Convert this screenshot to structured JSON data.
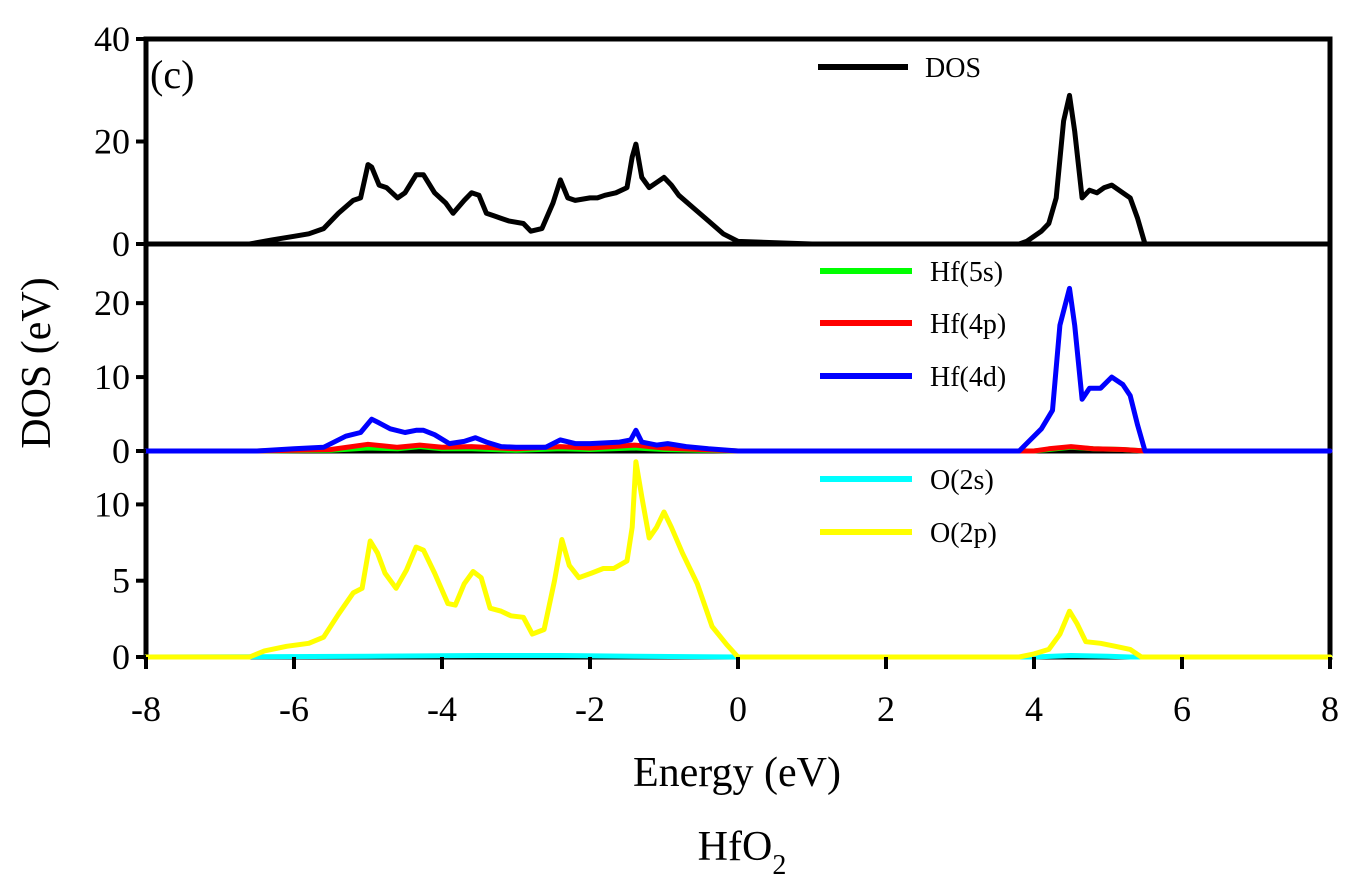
{
  "chart_data": {
    "type": "line",
    "panel_tag": "(c)",
    "xlabel": "Energy (eV)",
    "ylabel": "DOS (eV)",
    "caption": {
      "main": "HfO",
      "subscript": "2"
    },
    "xlim": [
      -8,
      8
    ],
    "xticks": [
      -8,
      -6,
      -4,
      -2,
      0,
      2,
      4,
      6,
      8
    ],
    "xtick_labels": [
      "-8",
      "-6",
      "-4",
      "-2",
      "0",
      "2",
      "4",
      "6",
      "8"
    ],
    "legend_position": "top-right",
    "panels": [
      {
        "ylim": [
          0,
          40
        ],
        "yticks": [
          0,
          20,
          40
        ],
        "ytick_labels": [
          "0",
          "20",
          "40"
        ],
        "series": [
          {
            "name": "DOS",
            "color": "#000000",
            "x": [
              -8,
              -6.6,
              -6.3,
              -6.0,
              -5.8,
              -5.6,
              -5.4,
              -5.2,
              -5.1,
              -5.0,
              -4.95,
              -4.85,
              -4.75,
              -4.6,
              -4.5,
              -4.35,
              -4.25,
              -4.1,
              -3.95,
              -3.85,
              -3.7,
              -3.6,
              -3.5,
              -3.4,
              -3.3,
              -3.2,
              -3.1,
              -2.9,
              -2.8,
              -2.65,
              -2.5,
              -2.4,
              -2.3,
              -2.2,
              -2.0,
              -1.9,
              -1.8,
              -1.65,
              -1.5,
              -1.43,
              -1.38,
              -1.3,
              -1.2,
              -1.1,
              -1.0,
              -0.9,
              -0.8,
              -0.6,
              -0.4,
              -0.2,
              0,
              1,
              2,
              3,
              3.8,
              3.9,
              4.1,
              4.2,
              4.3,
              4.4,
              4.48,
              4.55,
              4.65,
              4.75,
              4.85,
              4.95,
              5.05,
              5.2,
              5.3,
              5.4,
              5.5,
              6,
              8
            ],
            "y": [
              0,
              0,
              0.8,
              1.5,
              2.0,
              3.0,
              6.0,
              8.5,
              9.0,
              15.5,
              15.0,
              11.5,
              11.0,
              9.0,
              10.0,
              13.5,
              13.5,
              10.0,
              8.0,
              6.0,
              8.5,
              10.0,
              9.5,
              6.0,
              5.5,
              5.0,
              4.5,
              4.0,
              2.5,
              3.0,
              8.0,
              12.5,
              9.0,
              8.5,
              9.0,
              9.0,
              9.5,
              10.0,
              11.0,
              17.0,
              19.5,
              13.0,
              11.0,
              12.0,
              13.0,
              11.5,
              9.5,
              7.0,
              4.5,
              2.0,
              0.5,
              0,
              0,
              0,
              0,
              0.5,
              2.5,
              4.0,
              9.0,
              24.0,
              29.0,
              22.0,
              9.0,
              10.5,
              10.0,
              11.0,
              11.5,
              10.0,
              9.0,
              5.0,
              0,
              0,
              0
            ]
          }
        ]
      },
      {
        "ylim": [
          0,
          28
        ],
        "yticks": [
          0,
          10,
          20
        ],
        "ytick_labels": [
          "0",
          "10",
          "20"
        ],
        "series": [
          {
            "name": "Hf(5s)",
            "color": "#00ff00",
            "x": [
              -8,
              -6.5,
              -5.5,
              -5.0,
              -4.6,
              -4.3,
              -4.0,
              -3.6,
              -3.0,
              -2.4,
              -2.0,
              -1.4,
              -1.0,
              -0.5,
              0,
              4,
              4.2,
              4.5,
              4.8,
              5.2,
              5.5,
              8
            ],
            "y": [
              0,
              0,
              0.1,
              0.4,
              0.3,
              0.6,
              0.3,
              0.3,
              0.1,
              0.3,
              0.2,
              0.4,
              0.2,
              0.1,
              0,
              0,
              0.2,
              0.5,
              0.3,
              0.2,
              0,
              0
            ]
          },
          {
            "name": "Hf(4p)",
            "color": "#ff0000",
            "x": [
              -8,
              -6.5,
              -5.5,
              -5.0,
              -4.6,
              -4.3,
              -4.0,
              -3.6,
              -3.0,
              -2.4,
              -2.0,
              -1.4,
              -1.0,
              -0.5,
              0,
              4,
              4.2,
              4.5,
              4.8,
              5.2,
              5.5,
              8
            ],
            "y": [
              0,
              0,
              0.2,
              0.9,
              0.5,
              0.8,
              0.5,
              0.6,
              0.3,
              0.6,
              0.4,
              0.8,
              0.4,
              0.2,
              0,
              0,
              0.3,
              0.6,
              0.3,
              0.2,
              0,
              0
            ]
          },
          {
            "name": "Hf(4d)",
            "color": "#0000ff",
            "x": [
              -8,
              -6.5,
              -6.0,
              -5.6,
              -5.3,
              -5.1,
              -4.95,
              -4.85,
              -4.7,
              -4.5,
              -4.35,
              -4.25,
              -4.1,
              -3.9,
              -3.7,
              -3.55,
              -3.4,
              -3.2,
              -3.0,
              -2.6,
              -2.4,
              -2.2,
              -2.0,
              -1.6,
              -1.45,
              -1.38,
              -1.3,
              -1.1,
              -0.95,
              -0.7,
              -0.4,
              0,
              2,
              3.8,
              3.95,
              4.1,
              4.25,
              4.35,
              4.48,
              4.55,
              4.65,
              4.75,
              4.9,
              5.05,
              5.2,
              5.3,
              5.4,
              5.5,
              8
            ],
            "y": [
              0,
              0,
              0.3,
              0.5,
              2.0,
              2.5,
              4.3,
              3.8,
              3.0,
              2.5,
              2.8,
              2.8,
              2.2,
              1.0,
              1.3,
              1.8,
              1.2,
              0.6,
              0.5,
              0.5,
              1.5,
              1.0,
              1.0,
              1.2,
              1.5,
              2.8,
              1.2,
              0.8,
              1.0,
              0.6,
              0.3,
              0,
              0,
              0,
              1.5,
              3.0,
              5.5,
              17.0,
              22.0,
              17.0,
              7.0,
              8.5,
              8.5,
              10.0,
              9.0,
              7.5,
              3.5,
              0,
              0
            ]
          }
        ]
      },
      {
        "ylim": [
          0,
          13.5
        ],
        "yticks": [
          0,
          5,
          10
        ],
        "ytick_labels": [
          "0",
          "5",
          "10"
        ],
        "series": [
          {
            "name": "O(2s)",
            "color": "#00ffff",
            "x": [
              -8,
              -6.5,
              -5.0,
              -3.5,
              -2.4,
              -1.4,
              0,
              4.0,
              4.5,
              5.0,
              5.3,
              8
            ],
            "y": [
              0,
              0.02,
              0.05,
              0.1,
              0.1,
              0.05,
              0,
              0,
              0.1,
              0.05,
              0,
              0
            ]
          },
          {
            "name": "O(2p)",
            "color": "#ffff00",
            "x": [
              -8,
              -6.6,
              -6.4,
              -6.1,
              -5.8,
              -5.6,
              -5.4,
              -5.2,
              -5.08,
              -4.97,
              -4.87,
              -4.77,
              -4.62,
              -4.48,
              -4.35,
              -4.25,
              -4.1,
              -3.92,
              -3.82,
              -3.7,
              -3.58,
              -3.47,
              -3.35,
              -3.2,
              -3.07,
              -2.9,
              -2.78,
              -2.62,
              -2.48,
              -2.38,
              -2.28,
              -2.15,
              -1.98,
              -1.82,
              -1.68,
              -1.5,
              -1.43,
              -1.38,
              -1.3,
              -1.2,
              -1.1,
              -1.0,
              -0.9,
              -0.75,
              -0.55,
              -0.35,
              -0.15,
              0,
              1,
              2,
              3,
              3.8,
              4.0,
              4.2,
              4.35,
              4.48,
              4.58,
              4.7,
              4.9,
              5.1,
              5.3,
              5.45,
              6,
              8
            ],
            "y": [
              0,
              0,
              0.4,
              0.7,
              0.9,
              1.3,
              2.8,
              4.2,
              4.5,
              7.6,
              6.8,
              5.5,
              4.5,
              5.7,
              7.2,
              7.0,
              5.5,
              3.5,
              3.4,
              4.8,
              5.6,
              5.2,
              3.2,
              3.0,
              2.7,
              2.6,
              1.5,
              1.8,
              5.0,
              7.7,
              6.0,
              5.2,
              5.5,
              5.8,
              5.8,
              6.3,
              8.5,
              12.8,
              10.5,
              7.8,
              8.5,
              9.5,
              8.5,
              6.8,
              4.8,
              2.0,
              0.8,
              0,
              0,
              0,
              0,
              0,
              0.2,
              0.5,
              1.5,
              3.0,
              2.2,
              1.0,
              0.9,
              0.7,
              0.5,
              0,
              0,
              0
            ]
          }
        ]
      }
    ]
  }
}
